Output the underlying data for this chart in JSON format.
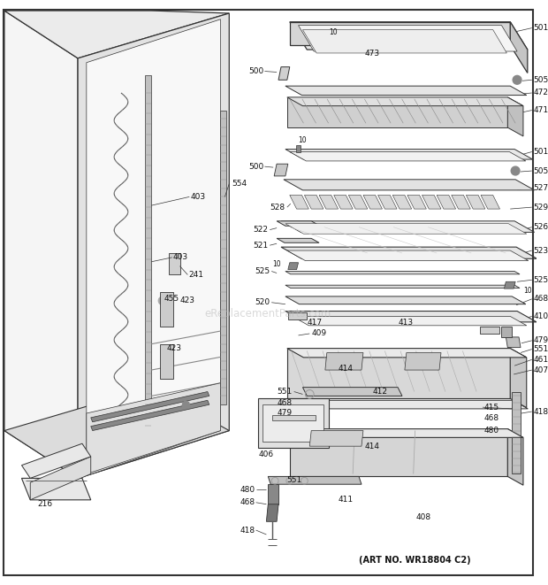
{
  "bg_color": "#ffffff",
  "line_color": "#333333",
  "label_color": "#111111",
  "art_no": "(ART NO. WR18804 C2)",
  "watermark": "eReplacementParts.com",
  "fig_width": 6.2,
  "fig_height": 6.61,
  "dpi": 100
}
